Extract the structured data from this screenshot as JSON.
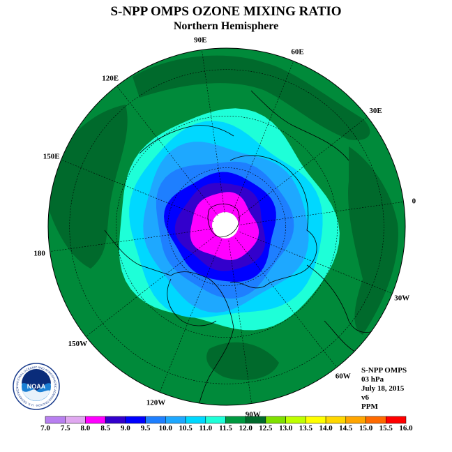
{
  "title": "S-NPP OMPS OZONE MIXING RATIO",
  "subtitle": "Northern Hemisphere",
  "longitude_labels": [
    {
      "text": "90E",
      "lon": 90
    },
    {
      "text": "60E",
      "lon": 60
    },
    {
      "text": "30E",
      "lon": 30
    },
    {
      "text": "0",
      "lon": 0
    },
    {
      "text": "30W",
      "lon": -30
    },
    {
      "text": "60W",
      "lon": -60
    },
    {
      "text": "90W",
      "lon": -90
    },
    {
      "text": "120W",
      "lon": -120
    },
    {
      "text": "150W",
      "lon": -150
    },
    {
      "text": "180",
      "lon": 180
    },
    {
      "text": "150E",
      "lon": 150
    },
    {
      "text": "120E",
      "lon": 120
    }
  ],
  "info": {
    "instrument": "S-NPP OMPS",
    "level": "03 hPa",
    "date": "July 18, 2015",
    "version": "v6",
    "units": "PPM"
  },
  "logo": {
    "text": "NOAA",
    "ring_text": "NATIONAL OCEANIC AND ATMOSPHERIC ADMINISTRATION · U.S. DEPARTMENT OF COMMERCE"
  },
  "color_scale": {
    "labels": [
      "7.0",
      "7.5",
      "8.0",
      "8.5",
      "9.0",
      "9.5",
      "10.0",
      "10.5",
      "11.0",
      "11.5",
      "12.0",
      "12.5",
      "13.0",
      "13.5",
      "14.0",
      "14.5",
      "15.0",
      "15.5",
      "16.0"
    ],
    "colors": [
      "#b87ff0",
      "#e0a8f0",
      "#ff00ff",
      "#3300cc",
      "#0000ff",
      "#1e7fff",
      "#1ea8ff",
      "#00d8ff",
      "#1effd8",
      "#009940",
      "#006a2c",
      "#7fe000",
      "#bfff00",
      "#ffff00",
      "#ffd700",
      "#ffa500",
      "#ff6a00",
      "#ff0000",
      "#7a4f2f"
    ]
  },
  "map": {
    "background_color": "#008a3a",
    "dark_green": "#006a2c",
    "contours": [
      {
        "value": 11.0,
        "color": "#1effd8"
      },
      {
        "value": 10.5,
        "color": "#00d8ff"
      },
      {
        "value": 10.0,
        "color": "#1ea8ff"
      },
      {
        "value": 9.5,
        "color": "#1e7fff"
      },
      {
        "value": 9.0,
        "color": "#0000ff"
      },
      {
        "value": 8.5,
        "color": "#3300cc"
      },
      {
        "value": 8.0,
        "color": "#ff00ff"
      }
    ]
  }
}
